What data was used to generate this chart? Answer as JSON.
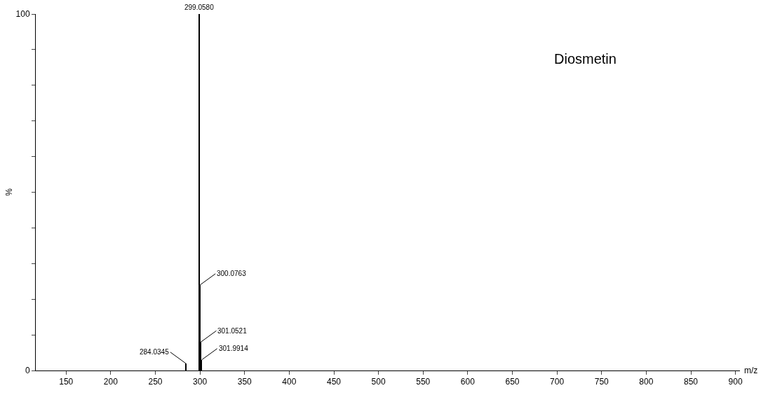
{
  "chart_data": {
    "type": "bar",
    "x": [
      284.0345,
      299.058,
      300.0763,
      301.0521,
      301.9914
    ],
    "values": [
      2,
      100,
      24,
      8,
      3
    ],
    "color": "#000000",
    "xlabel": "m/z",
    "ylabel": "%",
    "xlim": [
      116,
      905
    ],
    "xticks": [
      150,
      200,
      250,
      300,
      350,
      400,
      450,
      500,
      550,
      600,
      650,
      700,
      750,
      800,
      850,
      900
    ],
    "ylim": [
      0,
      100
    ],
    "yticks": [
      0,
      {
        "value": 10,
        "label": null
      },
      {
        "value": 20,
        "label": null
      },
      {
        "value": 30,
        "label": null
      },
      {
        "value": 40,
        "label": null
      },
      {
        "value": 50,
        "label": null
      },
      {
        "value": 60,
        "label": null
      },
      {
        "value": 70,
        "label": null
      },
      {
        "value": 80,
        "label": null
      },
      {
        "value": 90,
        "label": null
      },
      100
    ],
    "annotations": [
      {
        "text": "284.0345",
        "x": 284.0345,
        "y": 2
      },
      {
        "text": "299.0580",
        "x": 299.058,
        "y": 100
      },
      {
        "text": "300.0763",
        "x": 300.0763,
        "y": 24
      },
      {
        "text": "301.0521",
        "x": 301.0521,
        "y": 8
      },
      {
        "text": "301.9914",
        "x": 301.9914,
        "y": 3
      },
      "Diosmetin"
    ],
    "tick_labels": "xy"
  }
}
